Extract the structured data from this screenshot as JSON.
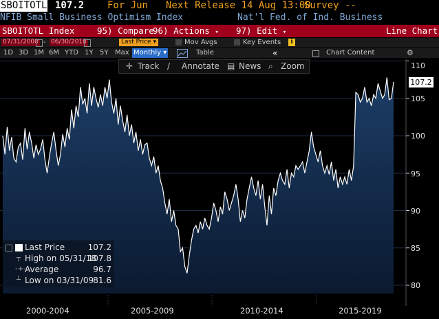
{
  "header": {
    "ticker": "SBOITOTL",
    "last_value": "107.2",
    "for_label": "For Jun",
    "next_release": "Next Release 14 Aug 13:00",
    "survey": "Survey --",
    "index_name": "NFIB Small Business Optimism Index",
    "source": "Nat'l Fed. of Ind. Business"
  },
  "menu": {
    "ticker_index": "SBOITOTL Index",
    "compare": "95) Compare",
    "actions": "96) Actions",
    "edit": "97) Edit",
    "chart_type": "Line Chart"
  },
  "controls": {
    "start_date": "07/31/2000",
    "end_date": "06/30/2018",
    "price_field": "Last Price",
    "mov_avgs": "Mov Avgs",
    "key_events": "Key Events"
  },
  "periods": {
    "items": [
      "1D",
      "3D",
      "1M",
      "6M",
      "YTD",
      "1Y",
      "5Y",
      "Max"
    ],
    "selected": "Monthly",
    "table": "Table",
    "chart_content": "Chart Content"
  },
  "toolbar": {
    "track": "Track",
    "annotate": "Annotate",
    "news": "News",
    "zoom": "Zoom"
  },
  "legend": {
    "last_price_label": "Last Price",
    "last_price_value": "107.2",
    "high_label": "High on 05/31/18",
    "high_value": "107.8",
    "avg_label": "Average",
    "avg_value": "96.7",
    "low_label": "Low on 03/31/09",
    "low_value": "81.6"
  },
  "price_tag": "107.2",
  "chart_data": {
    "type": "area",
    "title": "",
    "xlabel": "",
    "ylabel": "",
    "x_ticks": [
      "2000-2004",
      "2005-2009",
      "2010-2014",
      "2015-2019"
    ],
    "y_ticks": [
      80,
      85,
      90,
      95,
      100,
      105,
      110
    ],
    "ylim": [
      79,
      111
    ],
    "x_range": [
      "2000-07",
      "2018-06"
    ],
    "series": [
      {
        "values": [
          100.0,
          97.5,
          101.2,
          98.0,
          99.8,
          97.0,
          96.5,
          98.5,
          99.0,
          96.8,
          101.0,
          98.2,
          100.5,
          99.0,
          97.0,
          98.8,
          97.5,
          98.2,
          99.5,
          96.8,
          95.0,
          97.2,
          99.0,
          100.5,
          98.0,
          96.0,
          97.5,
          100.2,
          98.5,
          101.0,
          99.5,
          103.5,
          101.0,
          104.0,
          102.5,
          106.5,
          104.2,
          105.0,
          103.0,
          107.0,
          104.0,
          106.5,
          105.0,
          103.8,
          105.5,
          104.0,
          106.5,
          105.0,
          107.5,
          104.5,
          103.0,
          105.0,
          101.5,
          104.0,
          102.0,
          100.5,
          102.8,
          100.0,
          101.5,
          99.0,
          100.5,
          98.0,
          99.5,
          97.5,
          98.8,
          99.0,
          97.0,
          96.0,
          97.2,
          95.0,
          96.0,
          94.0,
          93.0,
          91.0,
          89.5,
          91.5,
          88.5,
          90.0,
          88.0,
          87.5,
          84.5,
          85.0,
          82.5,
          81.6,
          84.0,
          86.0,
          87.5,
          88.0,
          87.0,
          88.5,
          87.5,
          89.0,
          88.0,
          87.5,
          89.0,
          91.0,
          90.0,
          88.5,
          90.5,
          89.5,
          92.5,
          91.5,
          90.0,
          91.0,
          92.0,
          93.5,
          91.5,
          88.5,
          90.0,
          89.0,
          91.5,
          93.0,
          94.5,
          93.0,
          92.0,
          94.0,
          91.5,
          93.5,
          90.5,
          88.0,
          92.0,
          89.5,
          93.0,
          92.0,
          94.0,
          95.0,
          94.0,
          93.5,
          95.5,
          93.0,
          95.0,
          94.5,
          96.0,
          95.5,
          96.0,
          96.5,
          95.0,
          96.5,
          98.0,
          100.5,
          98.5,
          97.5,
          96.5,
          98.0,
          96.0,
          95.0,
          96.0,
          94.8,
          96.5,
          94.0,
          95.5,
          93.0,
          94.5,
          93.5,
          94.5,
          93.5,
          95.5,
          94.0,
          96.0,
          105.8,
          105.5,
          104.5,
          105.0,
          106.5,
          104.5,
          105.0,
          104.0,
          105.5,
          105.0,
          107.0,
          106.0,
          105.0,
          105.5,
          107.8,
          104.8,
          105.0,
          107.2
        ]
      }
    ]
  }
}
